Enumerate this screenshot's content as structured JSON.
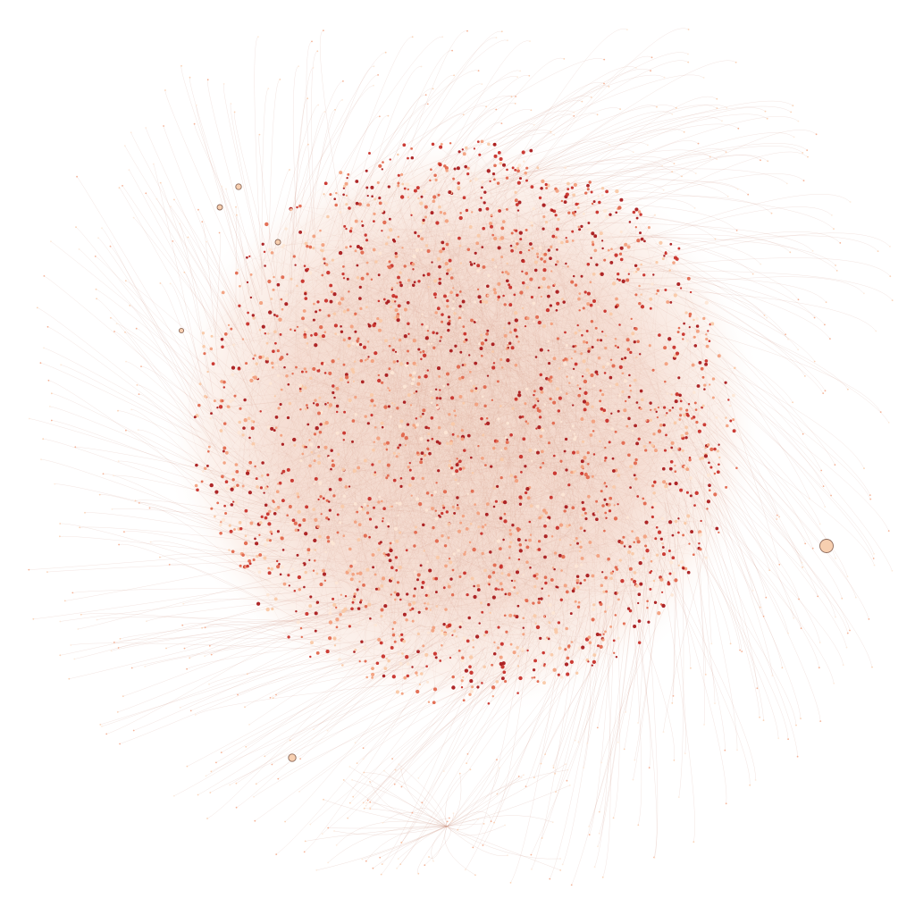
{
  "graph": {
    "layout": "force-directed",
    "edge_style": "curved",
    "background_color": "#ffffff",
    "edge_color": "#c98a78",
    "node_outline_color": "#8a4a3a",
    "node_palette": [
      "#fde7d6",
      "#f9c9a8",
      "#f2a07e",
      "#e2684e",
      "#c8302a",
      "#a91a1c"
    ],
    "outlier_node_color": "#f7cfb0",
    "outlier_node_outline": "#8e6a5a",
    "label_visible": false
  }
}
